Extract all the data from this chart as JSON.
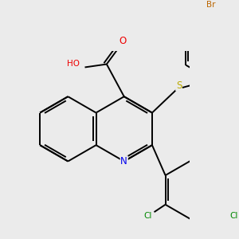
{
  "background_color": "#ebebeb",
  "bond_color": "#000000",
  "atom_colors": {
    "N": "#0000ee",
    "O": "#ee0000",
    "S": "#bbaa00",
    "Cl": "#008800",
    "Br": "#bb6600",
    "C": "#000000"
  },
  "figsize": [
    3.0,
    3.0
  ],
  "dpi": 100
}
